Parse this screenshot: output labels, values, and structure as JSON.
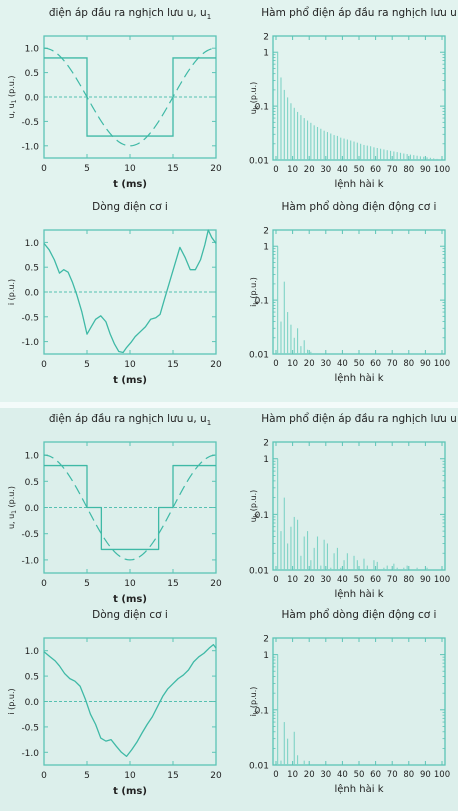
{
  "colors": {
    "frame": "#5cc4b6",
    "curve": "#3fb9a6",
    "bar": "#7fd3c6",
    "zero": "#56c0b1",
    "text": "#222222"
  },
  "chart_data": [
    {
      "id": "c1",
      "type": "line",
      "title": "điện áp đầu ra nghịch lưu u, u",
      "title_sub": "1",
      "xlabel": "t (ms)",
      "ylabel": "u, u",
      "ylabel_sub": "1",
      "ylabel_unit": "(p.u.)",
      "xlim": [
        0,
        20
      ],
      "ylim": [
        -1.25,
        1.25
      ],
      "xticks": [
        "0",
        "5",
        "10",
        "15",
        "20"
      ],
      "yticks": [
        "1.0",
        "0.5",
        "0.0",
        "-0.5",
        "-1.0"
      ],
      "series": [
        {
          "kind": "square",
          "levels": [
            0.8,
            -0.8,
            0.8
          ],
          "switch_x": [
            5,
            15
          ]
        },
        {
          "kind": "sine_dashed",
          "amplitude": 1.0,
          "period_ms": 20
        }
      ]
    },
    {
      "id": "c2",
      "type": "bar",
      "title": "Hàm phổ điện áp đầu ra nghịch lưu u",
      "xlabel": "lệnh hài k",
      "ylabel": "u",
      "ylabel_sub": "k",
      "ylabel_unit": "(p.u.)",
      "scale": "log",
      "xlim": [
        0,
        100
      ],
      "ylim": [
        0.01,
        2
      ],
      "xticks": [
        "0",
        "10",
        "20",
        "30",
        "40",
        "50",
        "60",
        "70",
        "80",
        "90",
        "100"
      ],
      "yticks": [
        "2",
        "1",
        "0.1",
        "0.01"
      ],
      "harmonics": "odd-all",
      "values": [
        [
          1,
          1.02
        ],
        [
          3,
          0.34
        ],
        [
          5,
          0.2
        ],
        [
          7,
          0.145
        ],
        [
          9,
          0.113
        ],
        [
          11,
          0.093
        ],
        [
          13,
          0.078
        ],
        [
          15,
          0.068
        ],
        [
          17,
          0.06
        ],
        [
          19,
          0.054
        ],
        [
          21,
          0.049
        ],
        [
          23,
          0.044
        ],
        [
          25,
          0.041
        ],
        [
          27,
          0.038
        ],
        [
          29,
          0.035
        ],
        [
          31,
          0.033
        ],
        [
          33,
          0.031
        ],
        [
          35,
          0.029
        ],
        [
          37,
          0.028
        ],
        [
          39,
          0.026
        ],
        [
          41,
          0.025
        ],
        [
          43,
          0.024
        ],
        [
          45,
          0.023
        ],
        [
          47,
          0.022
        ],
        [
          49,
          0.021
        ],
        [
          51,
          0.02
        ],
        [
          53,
          0.019
        ],
        [
          55,
          0.0185
        ],
        [
          57,
          0.018
        ],
        [
          59,
          0.0172
        ],
        [
          61,
          0.0167
        ],
        [
          63,
          0.0162
        ],
        [
          65,
          0.0157
        ],
        [
          67,
          0.0152
        ],
        [
          69,
          0.0148
        ],
        [
          71,
          0.0144
        ],
        [
          73,
          0.014
        ],
        [
          75,
          0.0136
        ],
        [
          77,
          0.0132
        ],
        [
          79,
          0.0129
        ],
        [
          81,
          0.0126
        ],
        [
          83,
          0.0123
        ],
        [
          85,
          0.012
        ],
        [
          87,
          0.0117
        ],
        [
          89,
          0.0115
        ],
        [
          91,
          0.0112
        ],
        [
          93,
          0.011
        ],
        [
          95,
          0.0107
        ],
        [
          97,
          0.0105
        ],
        [
          99,
          0.0103
        ]
      ]
    },
    {
      "id": "c3",
      "type": "line",
      "title": "Dòng điện cơ i",
      "xlabel": "t (ms)",
      "ylabel": "i",
      "ylabel_sub": "",
      "ylabel_unit": "(p.u.)",
      "xlim": [
        0,
        20
      ],
      "ylim": [
        -1.25,
        1.25
      ],
      "xticks": [
        "0",
        "5",
        "10",
        "15",
        "20"
      ],
      "yticks": [
        "1.0",
        "0.5",
        "0.0",
        "-0.5",
        "-1.0"
      ],
      "series": [
        {
          "kind": "curve",
          "x": [
            0,
            0.6,
            1.2,
            1.8,
            2.3,
            2.8,
            3.3,
            3.8,
            4.4,
            5.0,
            5.5,
            6.0,
            6.6,
            7.2,
            7.7,
            8.2,
            8.7,
            9.2,
            9.6,
            10.1,
            10.6,
            11.2,
            11.8,
            12.4,
            13.0,
            13.5,
            14.0,
            14.6,
            15.2,
            15.8,
            16.4,
            17.0,
            17.6,
            18.2,
            18.7,
            19.1,
            19.5,
            20.0
          ],
          "y": [
            0.98,
            0.85,
            0.65,
            0.38,
            0.45,
            0.4,
            0.2,
            -0.05,
            -0.4,
            -0.85,
            -0.7,
            -0.55,
            -0.48,
            -0.6,
            -0.85,
            -1.05,
            -1.2,
            -1.22,
            -1.12,
            -1.02,
            -0.9,
            -0.8,
            -0.7,
            -0.55,
            -0.52,
            -0.45,
            -0.15,
            0.2,
            0.55,
            0.9,
            0.7,
            0.45,
            0.45,
            0.65,
            0.95,
            1.25,
            1.1,
            0.98
          ]
        }
      ]
    },
    {
      "id": "c4",
      "type": "bar",
      "title": "Hàm phổ dòng điện động cơ i",
      "xlabel": "lệnh hài k",
      "ylabel": "i",
      "ylabel_sub": "k",
      "ylabel_unit": "(p.u.)",
      "scale": "log",
      "xlim": [
        0,
        100
      ],
      "ylim": [
        0.01,
        2
      ],
      "xticks": [
        "0",
        "10",
        "20",
        "30",
        "40",
        "50",
        "60",
        "70",
        "80",
        "90",
        "100"
      ],
      "yticks": [
        "2",
        "1",
        "0.1",
        "0.01"
      ],
      "values": [
        [
          1,
          1.0
        ],
        [
          3,
          0.04
        ],
        [
          5,
          0.22
        ],
        [
          7,
          0.06
        ],
        [
          9,
          0.035
        ],
        [
          11,
          0.02
        ],
        [
          13,
          0.03
        ],
        [
          15,
          0.014
        ],
        [
          17,
          0.018
        ],
        [
          19,
          0.012
        ],
        [
          21,
          0.011
        ]
      ]
    },
    {
      "id": "c5",
      "type": "line",
      "title": "điện áp đầu ra nghịch lưu u, u",
      "title_sub": "1",
      "xlabel": "t (ms)",
      "ylabel": "u, u",
      "ylabel_sub": "1",
      "ylabel_unit": "(p.u.)",
      "xlim": [
        0,
        20
      ],
      "ylim": [
        -1.25,
        1.25
      ],
      "xticks": [
        "0",
        "5",
        "10",
        "15",
        "20"
      ],
      "yticks": [
        "1.0",
        "0.5",
        "0.0",
        "-0.5",
        "-1.0"
      ],
      "series": [
        {
          "kind": "step",
          "x": [
            0,
            5,
            5,
            6.67,
            6.67,
            13.33,
            13.33,
            15,
            15,
            16.67,
            16.67,
            20
          ],
          "y": [
            0.8,
            0.8,
            0,
            0,
            -0.8,
            -0.8,
            0,
            0,
            0.8,
            0.8,
            0.8,
            0.8
          ]
        },
        {
          "kind": "sine_dashed",
          "amplitude": 1.0,
          "period_ms": 20
        }
      ]
    },
    {
      "id": "c6",
      "type": "bar",
      "title": "Hàm phổ điện áp đầu ra nghịch lưu u",
      "xlabel": "lệnh hài k",
      "ylabel": "u",
      "ylabel_sub": "k",
      "ylabel_unit": "(p.u.)",
      "scale": "log",
      "xlim": [
        0,
        100
      ],
      "ylim": [
        0.01,
        2
      ],
      "xticks": [
        "0",
        "10",
        "20",
        "30",
        "40",
        "50",
        "60",
        "70",
        "80",
        "90",
        "100"
      ],
      "yticks": [
        "2",
        "1",
        "0.1",
        "0.01"
      ],
      "values": [
        [
          1,
          1.0
        ],
        [
          3,
          0.05
        ],
        [
          5,
          0.2
        ],
        [
          7,
          0.03
        ],
        [
          9,
          0.06
        ],
        [
          11,
          0.09
        ],
        [
          13,
          0.08
        ],
        [
          15,
          0.018
        ],
        [
          17,
          0.04
        ],
        [
          19,
          0.05
        ],
        [
          21,
          0.015
        ],
        [
          23,
          0.025
        ],
        [
          25,
          0.04
        ],
        [
          27,
          0.012
        ],
        [
          29,
          0.035
        ],
        [
          31,
          0.03
        ],
        [
          33,
          0.011
        ],
        [
          35,
          0.02
        ],
        [
          37,
          0.025
        ],
        [
          39,
          0.011
        ],
        [
          41,
          0.015
        ],
        [
          43,
          0.02
        ],
        [
          47,
          0.018
        ],
        [
          49,
          0.015
        ],
        [
          53,
          0.016
        ],
        [
          55,
          0.012
        ],
        [
          59,
          0.015
        ],
        [
          61,
          0.014
        ],
        [
          65,
          0.011
        ],
        [
          67,
          0.012
        ],
        [
          71,
          0.013
        ],
        [
          73,
          0.011
        ],
        [
          77,
          0.011
        ],
        [
          79,
          0.012
        ],
        [
          85,
          0.011
        ],
        [
          91,
          0.011
        ]
      ]
    },
    {
      "id": "c7",
      "type": "line",
      "title": "Dòng điện cơ i",
      "xlabel": "t (ms)",
      "ylabel": "i",
      "ylabel_sub": "",
      "ylabel_unit": "(p.u.)",
      "xlim": [
        0,
        20
      ],
      "ylim": [
        -1.25,
        1.25
      ],
      "xticks": [
        "0",
        "5",
        "10",
        "15",
        "20"
      ],
      "yticks": [
        "1.0",
        "0.5",
        "0.0",
        "-0.5",
        "-1.0"
      ],
      "series": [
        {
          "kind": "curve",
          "x": [
            0,
            0.7,
            1.3,
            1.8,
            2.4,
            3.0,
            3.6,
            4.2,
            4.8,
            5.4,
            6.0,
            6.6,
            7.2,
            7.8,
            8.4,
            9.0,
            9.6,
            10.2,
            10.8,
            11.4,
            12.0,
            12.6,
            13.2,
            13.8,
            14.4,
            15.0,
            15.6,
            16.2,
            16.8,
            17.4,
            18.0,
            18.6,
            19.2,
            19.7,
            20.0
          ],
          "y": [
            0.98,
            0.88,
            0.8,
            0.7,
            0.55,
            0.45,
            0.4,
            0.3,
            0.05,
            -0.25,
            -0.45,
            -0.72,
            -0.78,
            -0.75,
            -0.88,
            -1.0,
            -1.08,
            -0.95,
            -0.8,
            -0.62,
            -0.45,
            -0.3,
            -0.1,
            0.1,
            0.25,
            0.35,
            0.45,
            0.52,
            0.62,
            0.78,
            0.88,
            0.95,
            1.05,
            1.12,
            1.05
          ]
        }
      ]
    },
    {
      "id": "c8",
      "type": "bar",
      "title": "Hàm phổ dòng điện động cơ i",
      "xlabel": "lệnh hài k",
      "ylabel": "i",
      "ylabel_sub": "k",
      "ylabel_unit": "(p.u.)",
      "scale": "log",
      "xlim": [
        0,
        100
      ],
      "ylim": [
        0.01,
        2
      ],
      "xticks": [
        "0",
        "10",
        "20",
        "30",
        "40",
        "50",
        "60",
        "70",
        "80",
        "90",
        "100"
      ],
      "yticks": [
        "2",
        "1",
        "0.1",
        "0.01"
      ],
      "values": [
        [
          1,
          1.0
        ],
        [
          3,
          0.012
        ],
        [
          5,
          0.06
        ],
        [
          7,
          0.03
        ],
        [
          11,
          0.04
        ],
        [
          13,
          0.015
        ],
        [
          17,
          0.012
        ]
      ]
    }
  ]
}
